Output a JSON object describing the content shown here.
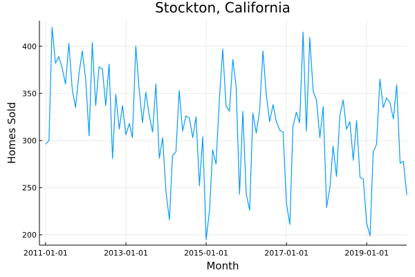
{
  "chart_data": {
    "type": "line",
    "title": "Stockton, California",
    "xlabel": "Month",
    "ylabel": "Homes Sold",
    "color": "#009af9",
    "grid": true,
    "legend": "none",
    "x_range": [
      "2010-11-06",
      "2019-12-31"
    ],
    "ylim": [
      189,
      427
    ],
    "x_ticks": [
      {
        "date": "2011-01-01",
        "label": "2011-01-01"
      },
      {
        "date": "2013-01-01",
        "label": "2013-01-01"
      },
      {
        "date": "2015-01-01",
        "label": "2015-01-01"
      },
      {
        "date": "2017-01-01",
        "label": "2017-01-01"
      },
      {
        "date": "2019-01-01",
        "label": "2019-01-01"
      }
    ],
    "y_ticks": [
      {
        "value": 200,
        "label": "200"
      },
      {
        "value": 250,
        "label": "250"
      },
      {
        "value": 300,
        "label": "300"
      },
      {
        "value": 350,
        "label": "350"
      },
      {
        "value": 400,
        "label": "400"
      }
    ],
    "series": [
      {
        "start": "2011-01",
        "frequency": "monthly",
        "values": [
          296,
          300,
          420,
          382,
          389,
          377,
          360,
          403,
          354,
          335,
          371,
          395,
          365,
          305,
          404,
          337,
          378,
          376,
          337,
          381,
          281,
          349,
          312,
          337,
          306,
          318,
          303,
          400,
          355,
          319,
          351,
          327,
          309,
          360,
          281,
          303,
          245,
          216,
          284,
          288,
          353,
          310,
          326,
          324,
          303,
          325,
          252,
          304,
          195,
          226,
          290,
          275,
          343,
          397,
          337,
          331,
          386,
          357,
          243,
          331,
          243,
          226,
          329,
          308,
          331,
          395,
          349,
          320,
          338,
          320,
          311,
          309,
          233,
          211,
          315,
          330,
          319,
          415,
          310,
          409,
          352,
          343,
          303,
          336,
          229,
          251,
          294,
          262,
          326,
          343,
          312,
          320,
          279,
          321,
          261,
          259,
          212,
          199,
          288,
          296,
          365,
          335,
          345,
          340,
          323,
          359,
          276,
          278,
          242
        ]
      }
    ]
  }
}
